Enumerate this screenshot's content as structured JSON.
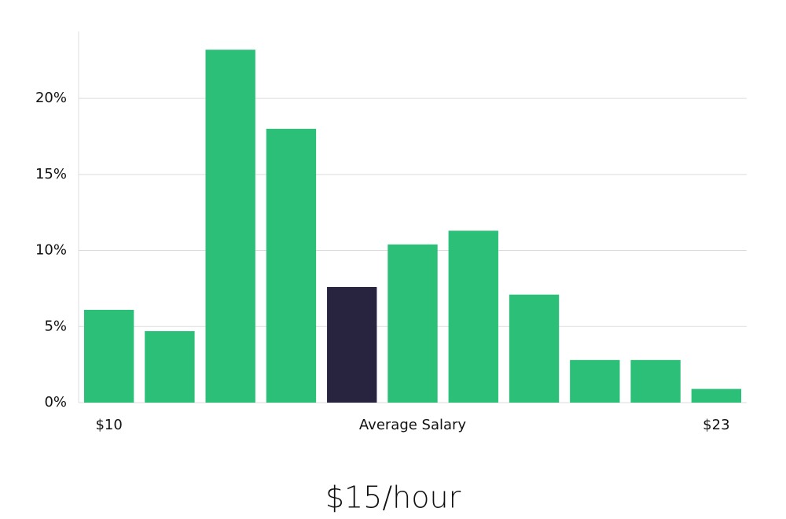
{
  "chart_data": {
    "type": "bar",
    "categories": [
      "$10",
      null,
      null,
      null,
      null,
      null,
      null,
      null,
      null,
      null,
      "$23"
    ],
    "values": [
      6.1,
      4.7,
      23.2,
      18.0,
      7.6,
      10.4,
      11.3,
      7.1,
      2.8,
      2.8,
      0.9
    ],
    "colors": [
      "#2bbf77",
      "#2bbf77",
      "#2bbf77",
      "#2bbf77",
      "#28233f",
      "#2bbf77",
      "#2bbf77",
      "#2bbf77",
      "#2bbf77",
      "#2bbf77",
      "#2bbf77"
    ],
    "xlabel": "Average Salary",
    "annotation": "$15/hour",
    "ylim": [
      0,
      24.4
    ],
    "yticks": [
      {
        "value": 0,
        "label": "0%"
      },
      {
        "value": 5,
        "label": "5%"
      },
      {
        "value": 10,
        "label": "10%"
      },
      {
        "value": 15,
        "label": "15%"
      },
      {
        "value": 20,
        "label": "20%"
      }
    ],
    "grid": true
  }
}
